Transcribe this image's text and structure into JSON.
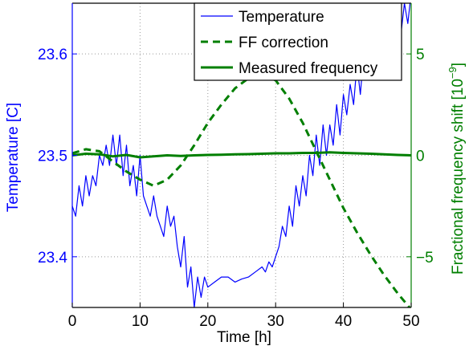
{
  "colors": {
    "temperature": "#0000ff",
    "frequency": "#007f00",
    "axes": "#000000",
    "grid": "#999999"
  },
  "chart_data": {
    "type": "line",
    "xlabel": "Time [h]",
    "ylabel_left": "Temperature [C]",
    "ylabel_right": "Fractional frequency shift [10",
    "ylabel_right_exponent": "−9",
    "ylabel_right_close": "]",
    "xlim": [
      0,
      50
    ],
    "ylim_left": [
      23.35,
      23.65
    ],
    "ylim_right": [
      -7.5,
      7.5
    ],
    "xticks": [
      "0",
      "10",
      "20",
      "30",
      "40",
      "50"
    ],
    "yticks_left": [
      "23.4",
      "23.5",
      "23.6"
    ],
    "yticks_right": [
      "−5",
      "0",
      "5"
    ],
    "grid": true,
    "legend_position": "top-right",
    "series": [
      {
        "name": "Temperature",
        "axis": "left",
        "style": "solid-thin",
        "color": "#0000ff",
        "x": [
          0,
          0.5,
          1,
          1.5,
          2,
          2.5,
          3,
          3.5,
          4,
          4.5,
          5,
          5.5,
          6,
          6.5,
          7,
          7.5,
          8,
          8.5,
          9,
          9.5,
          10,
          10.5,
          11,
          11.5,
          12,
          12.5,
          13,
          13.5,
          14,
          14.5,
          15,
          15.5,
          16,
          16.5,
          17,
          17.5,
          18,
          18.5,
          19,
          19.5,
          20,
          21,
          22,
          23,
          24,
          25,
          26,
          27,
          28,
          28.5,
          29,
          29.5,
          30,
          30.5,
          31,
          31.5,
          32,
          32.5,
          33,
          33.5,
          34,
          34.5,
          35,
          35.5,
          36,
          36.5,
          37,
          37.5,
          38,
          38.5,
          39,
          39.5,
          40,
          40.5,
          41,
          41.5,
          42,
          42.5,
          43,
          43.5,
          44,
          44.5,
          45,
          45.5,
          46,
          46.5,
          47,
          47.5,
          48,
          48.5,
          49,
          49.5,
          50
        ],
        "y": [
          23.45,
          23.44,
          23.47,
          23.45,
          23.48,
          23.46,
          23.48,
          23.47,
          23.5,
          23.49,
          23.51,
          23.49,
          23.52,
          23.49,
          23.52,
          23.48,
          23.51,
          23.47,
          23.49,
          23.46,
          23.5,
          23.46,
          23.45,
          23.44,
          23.46,
          23.44,
          23.43,
          23.42,
          23.45,
          23.43,
          23.44,
          23.41,
          23.39,
          23.42,
          23.37,
          23.39,
          23.35,
          23.38,
          23.36,
          23.38,
          23.37,
          23.375,
          23.38,
          23.38,
          23.375,
          23.378,
          23.38,
          23.385,
          23.39,
          23.385,
          23.395,
          23.39,
          23.4,
          23.41,
          23.43,
          23.42,
          23.45,
          23.43,
          23.47,
          23.45,
          23.48,
          23.46,
          23.5,
          23.48,
          23.52,
          23.49,
          23.53,
          23.5,
          23.53,
          23.51,
          23.55,
          23.52,
          23.56,
          23.54,
          23.57,
          23.55,
          23.59,
          23.56,
          23.6,
          23.58,
          23.61,
          23.59,
          23.62,
          23.6,
          23.62,
          23.6,
          23.63,
          23.61,
          23.64,
          23.62,
          23.65,
          23.63,
          23.66
        ]
      },
      {
        "name": "FF correction",
        "axis": "right",
        "style": "dashed",
        "color": "#007f00",
        "x": [
          0,
          2,
          4,
          6,
          8,
          10,
          12,
          14,
          16,
          18,
          20,
          22,
          24,
          26,
          28,
          30,
          32,
          34,
          36,
          38,
          40,
          42,
          44,
          46,
          48,
          50
        ],
        "y": [
          0.1,
          0.3,
          0.2,
          -0.3,
          -0.8,
          -1.2,
          -1.5,
          -1.2,
          -0.5,
          0.5,
          1.6,
          2.5,
          3.3,
          3.8,
          4.0,
          3.7,
          2.8,
          1.6,
          0.2,
          -1.2,
          -2.6,
          -3.8,
          -4.9,
          -5.9,
          -6.8,
          -7.6
        ]
      },
      {
        "name": "Measured frequency",
        "axis": "right",
        "style": "solid-thick",
        "color": "#007f00",
        "x": [
          0,
          2,
          4,
          6,
          8,
          10,
          12,
          14,
          16,
          18,
          20,
          22,
          24,
          26,
          28,
          30,
          32,
          34,
          36,
          38,
          40,
          42,
          44,
          46,
          48,
          50
        ],
        "y": [
          0.0,
          0.08,
          0.05,
          -0.05,
          0.02,
          -0.1,
          -0.05,
          0.0,
          -0.03,
          0.0,
          0.02,
          0.03,
          0.05,
          0.06,
          0.08,
          0.1,
          0.1,
          0.12,
          0.12,
          0.15,
          0.12,
          0.1,
          0.08,
          0.05,
          0.02,
          0.0
        ]
      }
    ]
  }
}
